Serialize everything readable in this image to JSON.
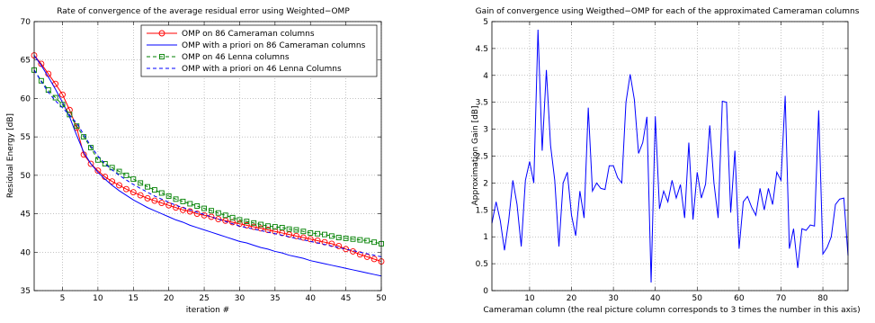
{
  "chart_data": [
    {
      "type": "line",
      "title": "Rate of convergence of the average residual error using Weighted−OMP",
      "xlabel": "iteration #",
      "ylabel": "Residual Energy [dB]",
      "xlim": [
        1,
        50
      ],
      "ylim": [
        35,
        70
      ],
      "xticks": [
        5,
        10,
        15,
        20,
        25,
        30,
        35,
        40,
        45,
        50
      ],
      "yticks": [
        35,
        40,
        45,
        50,
        55,
        60,
        65,
        70
      ],
      "grid": true,
      "legend": "top-right",
      "x": [
        1,
        2,
        3,
        4,
        5,
        6,
        7,
        8,
        9,
        10,
        11,
        12,
        13,
        14,
        15,
        16,
        17,
        18,
        19,
        20,
        21,
        22,
        23,
        24,
        25,
        26,
        27,
        28,
        29,
        30,
        31,
        32,
        33,
        34,
        35,
        36,
        37,
        38,
        39,
        40,
        41,
        42,
        43,
        44,
        45,
        46,
        47,
        48,
        49,
        50
      ],
      "series": [
        {
          "name": "OMP on 86 Cameraman columns",
          "color": "#ff0000",
          "style": "solid",
          "marker": "circle",
          "values": [
            65.6,
            64.5,
            63.2,
            61.9,
            60.5,
            58.5,
            56.2,
            52.7,
            51.5,
            50.6,
            49.8,
            49.2,
            48.7,
            48.2,
            47.8,
            47.4,
            47.0,
            46.7,
            46.4,
            46.1,
            45.8,
            45.5,
            45.3,
            45.0,
            44.8,
            44.6,
            44.3,
            44.1,
            43.9,
            43.7,
            43.5,
            43.3,
            43.1,
            42.9,
            42.7,
            42.5,
            42.3,
            42.1,
            41.9,
            41.7,
            41.5,
            41.3,
            41.1,
            40.8,
            40.4,
            40.1,
            39.7,
            39.4,
            39.1,
            38.8
          ]
        },
        {
          "name": "OMP with a priori on 86 Cameraman columns",
          "color": "#0000ff",
          "style": "solid",
          "marker": "none",
          "values": [
            65.6,
            64.3,
            62.8,
            61.2,
            59.5,
            57.6,
            55.2,
            53.0,
            51.5,
            50.4,
            49.5,
            48.7,
            48.0,
            47.4,
            46.8,
            46.3,
            45.8,
            45.4,
            45.0,
            44.6,
            44.2,
            43.9,
            43.5,
            43.2,
            42.9,
            42.6,
            42.3,
            42.0,
            41.7,
            41.4,
            41.2,
            40.9,
            40.6,
            40.4,
            40.1,
            39.9,
            39.6,
            39.4,
            39.2,
            38.9,
            38.7,
            38.5,
            38.3,
            38.1,
            37.9,
            37.7,
            37.5,
            37.3,
            37.1,
            36.9
          ]
        },
        {
          "name": "OMP on 46 Lenna columns",
          "color": "#008000",
          "style": "dashed",
          "marker": "square",
          "values": [
            63.7,
            62.3,
            61.1,
            60.1,
            59.2,
            57.9,
            56.4,
            55.0,
            53.6,
            52.0,
            51.5,
            51.0,
            50.5,
            50.0,
            49.5,
            49.0,
            48.5,
            48.1,
            47.7,
            47.3,
            46.9,
            46.6,
            46.3,
            46.0,
            45.7,
            45.4,
            45.1,
            44.8,
            44.5,
            44.2,
            44.0,
            43.8,
            43.6,
            43.4,
            43.3,
            43.2,
            43.0,
            42.9,
            42.7,
            42.5,
            42.4,
            42.3,
            42.1,
            41.9,
            41.8,
            41.7,
            41.6,
            41.5,
            41.3,
            41.1
          ]
        },
        {
          "name": "OMP with a priori on 46 Lenna Columns",
          "color": "#0000ff",
          "style": "dashed",
          "marker": "none",
          "values": [
            63.7,
            62.2,
            60.8,
            59.7,
            58.8,
            57.8,
            56.8,
            55.3,
            53.8,
            52.5,
            51.5,
            50.7,
            50.0,
            49.4,
            48.8,
            48.3,
            47.8,
            47.3,
            46.9,
            46.5,
            46.1,
            45.8,
            45.5,
            45.2,
            44.9,
            44.6,
            44.3,
            44.0,
            43.7,
            43.4,
            43.2,
            43.0,
            42.8,
            42.6,
            42.4,
            42.2,
            42.0,
            41.8,
            41.6,
            41.4,
            41.2,
            41.0,
            40.8,
            40.6,
            40.4,
            40.2,
            40.0,
            39.8,
            39.6,
            39.4
          ]
        }
      ]
    },
    {
      "type": "line",
      "title": "Gain of convergence using Weigthed−OMP for each of the approximated Cameraman columns",
      "xlabel": "Cameraman column (the real picture column corresponds to 3 times the number in this axis)",
      "ylabel": "Approximation Gain [dB]",
      "xlim": [
        1,
        86
      ],
      "ylim": [
        0,
        5
      ],
      "xticks": [
        10,
        20,
        30,
        40,
        50,
        60,
        70,
        80
      ],
      "yticks": [
        0,
        0.5,
        1,
        1.5,
        2,
        2.5,
        3,
        3.5,
        4,
        4.5,
        5
      ],
      "grid": true,
      "series": [
        {
          "color": "#0000ff",
          "style": "solid",
          "values": [
            1.25,
            1.65,
            1.3,
            0.75,
            1.3,
            2.05,
            1.6,
            0.82,
            2.05,
            2.4,
            2.0,
            4.85,
            2.6,
            4.1,
            2.7,
            2.05,
            0.82,
            2.0,
            2.2,
            1.4,
            1.02,
            1.85,
            1.35,
            3.4,
            1.85,
            2.0,
            1.9,
            1.88,
            2.32,
            2.32,
            2.1,
            2.0,
            3.5,
            4.02,
            3.55,
            2.55,
            2.75,
            3.23,
            0.15,
            3.24,
            1.52,
            1.85,
            1.65,
            2.05,
            1.72,
            1.97,
            1.35,
            2.75,
            1.32,
            2.2,
            1.72,
            1.98,
            3.07,
            2.0,
            1.35,
            3.52,
            3.5,
            1.45,
            2.6,
            0.78,
            1.65,
            1.75,
            1.55,
            1.4,
            1.9,
            1.5,
            1.9,
            1.6,
            2.2,
            2.05,
            3.62,
            0.78,
            1.15,
            0.42,
            1.15,
            1.12,
            1.22,
            1.2,
            3.35,
            0.68,
            0.8,
            1.0,
            1.6,
            1.7,
            1.72,
            0.65
          ]
        }
      ]
    }
  ]
}
